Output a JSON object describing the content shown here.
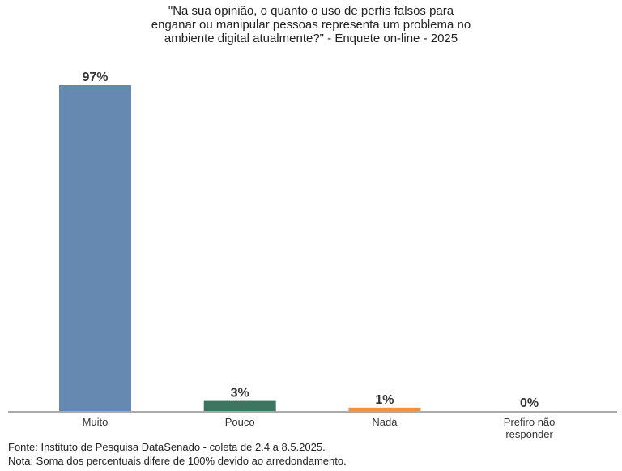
{
  "chart_data": {
    "type": "bar",
    "title_lines": [
      "\"Na sua opinião, o quanto o uso de perfis falsos para",
      "enganar ou manipular pessoas representa um problema no",
      "ambiente digital atualmente?\" - Enquete on-line - 2025"
    ],
    "categories": [
      [
        "Muito"
      ],
      [
        "Pouco"
      ],
      [
        "Nada"
      ],
      [
        "Prefiro não",
        "responder"
      ]
    ],
    "values": [
      97,
      3,
      1,
      0
    ],
    "data_labels": [
      "97%",
      "3%",
      "1%",
      "0%"
    ],
    "colors": [
      "#6689b1",
      "#3e7561",
      "#f2923e",
      "#999999"
    ],
    "ylim": [
      0,
      100
    ],
    "grid": false,
    "legend": "none"
  },
  "footer": {
    "source": "Fonte: Instituto de Pesquisa DataSenado - coleta de 2.4 a 8.5.2025.",
    "note": "Nota: Soma dos percentuais difere de 100% devido ao arredondamento."
  }
}
